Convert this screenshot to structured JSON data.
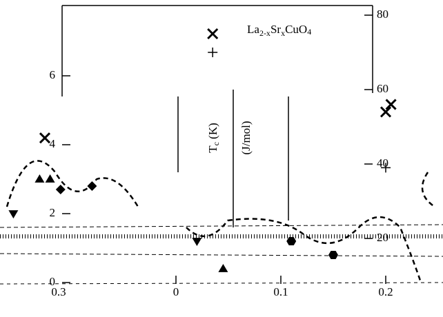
{
  "chart_data": {
    "type": "scatter",
    "title": [
      "La",
      "2-x",
      "Sr",
      "x",
      "CuO",
      "4"
    ],
    "y2label": [
      "T",
      "c",
      " (K)"
    ],
    "ylabel": "(J/mol)",
    "annotations": [
      "0.3"
    ],
    "xlim": [
      -0.17,
      0.25
    ],
    "xticks": [
      0,
      0.1,
      0.2
    ],
    "ylim": [
      0,
      8
    ],
    "yticks": [
      0,
      2,
      4,
      6
    ],
    "y2lim": [
      0,
      80
    ],
    "y2ticks": [
      20,
      40,
      60,
      80
    ],
    "color": "#000000",
    "series": [
      {
        "marker": "x",
        "axis": "y2",
        "x": [
          0.035,
          0.2,
          0.205,
          -0.125
        ],
        "values": [
          75,
          54,
          56,
          47
        ]
      },
      {
        "marker": "+",
        "axis": "y2",
        "x": [
          0.035,
          0.2
        ],
        "values": [
          70,
          39
        ]
      },
      {
        "marker": "triangle-up",
        "x": [
          -0.13,
          -0.12,
          0.045
        ],
        "values": [
          3.0,
          3.0,
          0.4
        ]
      },
      {
        "marker": "triangle-down",
        "x": [
          -0.155,
          0.02
        ],
        "values": [
          2.0,
          1.2
        ]
      },
      {
        "marker": "diamond",
        "x": [
          -0.08,
          -0.11
        ],
        "values": [
          2.8,
          2.7
        ]
      },
      {
        "marker": "hexagon",
        "x": [
          0.11,
          0.15
        ],
        "values": [
          1.2,
          0.8
        ]
      }
    ]
  }
}
